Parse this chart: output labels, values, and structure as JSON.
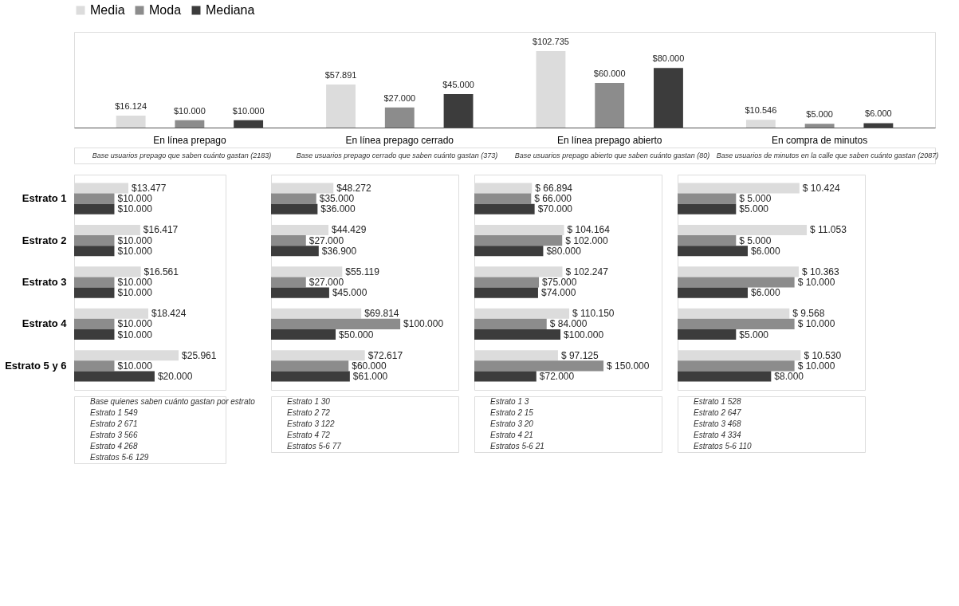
{
  "chart_data": [
    {
      "type": "bar",
      "categories": [
        "En línea prepago",
        "En línea prepago cerrado",
        "En línea prepago abierto",
        "En compra de minutos"
      ],
      "legend": "top",
      "series": [
        {
          "name": "Media",
          "color": "#dcdcdc",
          "values": [
            16124,
            57891,
            102735,
            10546
          ],
          "value_labels": [
            "$16.124",
            "$57.891",
            "$102.735",
            "$10.546"
          ]
        },
        {
          "name": "Moda",
          "color": "#8c8c8c",
          "values": [
            10000,
            27000,
            60000,
            5000
          ],
          "value_labels": [
            "$10.000",
            "$27.000",
            "$60.000",
            "$5.000"
          ]
        },
        {
          "name": "Mediana",
          "color": "#3c3c3c",
          "values": [
            10000,
            45000,
            80000,
            6000
          ],
          "value_labels": [
            "$10.000",
            "$45.000",
            "$80.000",
            "$6.000"
          ]
        }
      ],
      "annotations": [
        "Base usuarios prepago que saben cuánto gastan (2183)",
        "Base usuarios prepago cerrado que saben cuánto gastan (373)",
        "Base usuarios prepago abierto que saben cuánto gastan (80)",
        "Base usuarios de minutos en la calle que saben cuánto gastan (2087)"
      ]
    },
    {
      "type": "bar",
      "orientation": "horizontal",
      "categories": [
        "Estrato 1",
        "Estrato 2",
        "Estrato 3",
        "Estrato 4",
        "Estrato 5 y 6"
      ],
      "series": [
        {
          "name": "Media",
          "color": "#dcdcdc",
          "values": [
            13477,
            16417,
            16561,
            18424,
            25961
          ],
          "value_labels": [
            "$13.477",
            "$16.417",
            "$16.561",
            "$18.424",
            "$25.961"
          ]
        },
        {
          "name": "Moda",
          "color": "#8c8c8c",
          "values": [
            10000,
            10000,
            10000,
            10000,
            10000
          ],
          "value_labels": [
            "$10.000",
            "$10.000",
            "$10.000",
            "$10.000",
            "$10.000"
          ]
        },
        {
          "name": "Mediana",
          "color": "#3c3c3c",
          "values": [
            10000,
            10000,
            10000,
            10000,
            20000
          ],
          "value_labels": [
            "$10.000",
            "$10.000",
            "$10.000",
            "$10.000",
            "$20.000"
          ]
        }
      ],
      "annotations": [
        "Base quienes saben cuánto gastan por estrato",
        "Estrato 1  549",
        "Estrato 2  671",
        "Estrato 3  566",
        "Estrato 4  268",
        "Estratos 5-6  129"
      ]
    },
    {
      "type": "bar",
      "orientation": "horizontal",
      "categories": [
        "Estrato 1",
        "Estrato 2",
        "Estrato 3",
        "Estrato 4",
        "Estrato 5 y 6"
      ],
      "tick_labels": false,
      "series": [
        {
          "name": "Media",
          "color": "#dcdcdc",
          "values": [
            48272,
            44429,
            55119,
            69814,
            72617
          ],
          "value_labels": [
            "$48.272",
            "$44.429",
            "$55.119",
            "$69.814",
            "$72.617"
          ]
        },
        {
          "name": "Moda",
          "color": "#8c8c8c",
          "values": [
            35000,
            27000,
            27000,
            100000,
            60000
          ],
          "value_labels": [
            "$35.000",
            "$27.000",
            "$27.000",
            "$100.000",
            "$60.000"
          ]
        },
        {
          "name": "Mediana",
          "color": "#3c3c3c",
          "values": [
            36000,
            36900,
            45000,
            50000,
            61000
          ],
          "value_labels": [
            "$36.000",
            "$36.900",
            "$45.000",
            "$50.000",
            "$61.000"
          ]
        }
      ],
      "annotations": [
        "Estrato 1  30",
        "Estrato 2  72",
        "Estrato 3  122",
        "Estrato 4  72",
        "Estratos 5-6  77"
      ]
    },
    {
      "type": "bar",
      "orientation": "horizontal",
      "categories": [
        "Estrato 1",
        "Estrato 2",
        "Estrato 3",
        "Estrato 4",
        "Estrato 5 y 6"
      ],
      "tick_labels": false,
      "series": [
        {
          "name": "Media",
          "color": "#dcdcdc",
          "values": [
            66894,
            104164,
            102247,
            110150,
            97125
          ],
          "value_labels": [
            "$ 66.894",
            "$ 104.164",
            "$ 102.247",
            "$ 110.150",
            "$ 97.125"
          ]
        },
        {
          "name": "Moda",
          "color": "#8c8c8c",
          "values": [
            66000,
            102000,
            75000,
            84000,
            150000
          ],
          "value_labels": [
            "$ 66.000",
            "$ 102.000",
            "$75.000",
            "$ 84.000",
            "$ 150.000"
          ]
        },
        {
          "name": "Mediana",
          "color": "#3c3c3c",
          "values": [
            70000,
            80000,
            74000,
            100000,
            72000
          ],
          "value_labels": [
            "$70.000",
            "$80.000",
            "$74.000",
            "$100.000",
            "$72.000"
          ]
        }
      ],
      "annotations": [
        "Estrato 1  3",
        "Estrato 2  15",
        "Estrato 3  20",
        "Estrato 4  21",
        "Estratos 5-6  21"
      ]
    },
    {
      "type": "bar",
      "orientation": "horizontal",
      "categories": [
        "Estrato 1",
        "Estrato 2",
        "Estrato 3",
        "Estrato 4",
        "Estrato 5 y 6"
      ],
      "tick_labels": false,
      "series": [
        {
          "name": "Media",
          "color": "#dcdcdc",
          "values": [
            10424,
            11053,
            10363,
            9568,
            10530
          ],
          "value_labels": [
            "$ 10.424",
            "$ 11.053",
            "$ 10.363",
            "$ 9.568",
            "$ 10.530"
          ]
        },
        {
          "name": "Moda",
          "color": "#8c8c8c",
          "values": [
            5000,
            5000,
            10000,
            10000,
            10000
          ],
          "value_labels": [
            "$ 5.000",
            "$ 5.000",
            "$ 10.000",
            "$ 10.000",
            "$ 10.000"
          ]
        },
        {
          "name": "Mediana",
          "color": "#3c3c3c",
          "values": [
            5000,
            6000,
            6000,
            5000,
            8000
          ],
          "value_labels": [
            "$5.000",
            "$6.000",
            "$6.000",
            "$5.000",
            "$8.000"
          ]
        }
      ],
      "annotations": [
        "Estrato 1  528",
        "Estrato 2  647",
        "Estrato 3  468",
        "Estrato 4  334",
        "Estratos 5-6  110"
      ]
    }
  ]
}
